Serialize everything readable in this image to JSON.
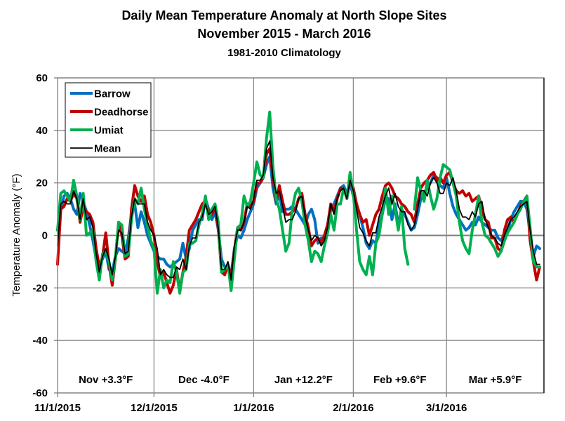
{
  "chart_data": {
    "type": "line",
    "title": "Daily Mean Temperature Anomaly at North Slope Sites",
    "subtitle": "November 2015 - March 2016",
    "subtitle2": "1981-2010 Climatology",
    "xlabel": "",
    "ylabel": "Temperature Anomaly (°F)",
    "ylim": [
      -60,
      60
    ],
    "yticks": [
      60,
      40,
      20,
      0,
      -20,
      -40,
      -60
    ],
    "x_start_date": "11/1/2015",
    "x_end_date": "3/31/2016",
    "x_step": "daily",
    "xticks": [
      "11/1/2015",
      "12/1/2015",
      "1/1/2016",
      "2/1/2016",
      "3/1/2016"
    ],
    "grid": true,
    "legend_placement": "top-left",
    "monthly_annotations": [
      "Nov  +3.3°F",
      "Dec -4.0°F",
      "Jan +12.2°F",
      "Feb +9.6°F",
      "Mar +5.9°F"
    ],
    "series": [
      {
        "name": "Barrow",
        "color": "#0070C0",
        "values": [
          2,
          10,
          15,
          16,
          14,
          10,
          8,
          16,
          13,
          9,
          4,
          -2,
          -9,
          -11,
          -9,
          -6,
          -13,
          -14,
          -8,
          -5,
          -6,
          -7,
          -1,
          8,
          12,
          3,
          9,
          5,
          0,
          -3,
          -6,
          -8,
          -9,
          -9,
          -11,
          -12,
          -11,
          -10,
          -9,
          -3,
          -9,
          -5,
          2,
          4,
          6,
          6,
          14,
          10,
          6,
          9,
          2,
          -9,
          -12,
          -12,
          -15,
          -5,
          0,
          -1,
          2,
          6,
          9,
          12,
          18,
          20,
          22,
          27,
          30,
          18,
          12,
          16,
          9,
          10,
          10,
          11,
          10,
          8,
          6,
          4,
          8,
          10,
          6,
          -3,
          -1,
          -1,
          2,
          10,
          12,
          15,
          18,
          19,
          16,
          20,
          15,
          12,
          8,
          3,
          -3,
          -5,
          -2,
          -3,
          4,
          8,
          14,
          14,
          6,
          12,
          4,
          10,
          8,
          5,
          2,
          3,
          8,
          14,
          16,
          18,
          20,
          23,
          22,
          19,
          18,
          22,
          16,
          11,
          8,
          6,
          4,
          2,
          3,
          5,
          4,
          7,
          5,
          4,
          3,
          2,
          2,
          -1,
          -2,
          1,
          2,
          6,
          9,
          11,
          13,
          13,
          10,
          1,
          -8,
          -4,
          -5
        ]
      },
      {
        "name": "Deadhorse",
        "color": "#C00000",
        "values": [
          -11,
          10,
          11,
          14,
          13,
          16,
          14,
          5,
          11,
          9,
          8,
          5,
          -5,
          -12,
          -8,
          1,
          -11,
          -19,
          -9,
          5,
          0,
          -9,
          -8,
          10,
          19,
          15,
          13,
          15,
          8,
          5,
          0,
          -10,
          -16,
          -14,
          -18,
          -22,
          -19,
          -13,
          -21,
          -14,
          -8,
          2,
          4,
          6,
          9,
          12,
          13,
          9,
          8,
          11,
          3,
          -14,
          -15,
          -11,
          -16,
          -6,
          3,
          2,
          5,
          12,
          11,
          13,
          20,
          20,
          22,
          31,
          33,
          22,
          13,
          19,
          13,
          8,
          8,
          9,
          10,
          14,
          16,
          8,
          3,
          -4,
          -2,
          -1,
          -3,
          0,
          4,
          12,
          9,
          14,
          18,
          18,
          14,
          21,
          18,
          12,
          8,
          5,
          6,
          0,
          4,
          8,
          10,
          15,
          19,
          20,
          18,
          15,
          14,
          12,
          11,
          9,
          8,
          5,
          12,
          18,
          20,
          21,
          23,
          24,
          21,
          22,
          20,
          23,
          24,
          20,
          17,
          16,
          17,
          15,
          16,
          13,
          14,
          15,
          10,
          6,
          5,
          -1,
          -1,
          -5,
          -6,
          2,
          6,
          7,
          5,
          8,
          11,
          13,
          15,
          -2,
          -10,
          -17,
          -12
        ]
      },
      {
        "name": "Umiat",
        "color": "#00B050",
        "values": [
          2,
          16,
          17,
          15,
          13,
          21,
          15,
          6,
          16,
          0,
          1,
          2,
          -10,
          -17,
          -7,
          -6,
          -10,
          -17,
          -9,
          5,
          4,
          -8,
          -7,
          6,
          14,
          12,
          18,
          10,
          4,
          -2,
          -5,
          -22,
          -13,
          -20,
          -17,
          -18,
          -10,
          -14,
          -22,
          -14,
          -13,
          -3,
          -3,
          -2,
          4,
          8,
          15,
          6,
          10,
          12,
          5,
          -14,
          -13,
          -11,
          -21,
          -9,
          3,
          4,
          15,
          11,
          13,
          20,
          28,
          23,
          22,
          37,
          47,
          26,
          14,
          10,
          2,
          -6,
          -3,
          10,
          16,
          18,
          13,
          4,
          -2,
          -10,
          -6,
          -7,
          -10,
          -4,
          1,
          8,
          2,
          12,
          12,
          18,
          14,
          24,
          16,
          2,
          -10,
          -13,
          -15,
          -8,
          -15,
          -3,
          0,
          8,
          18,
          8,
          15,
          10,
          2,
          11,
          -5,
          -11,
          null,
          10,
          22,
          17,
          13,
          21,
          15,
          10,
          14,
          22,
          27,
          26,
          25,
          20,
          15,
          5,
          -2,
          -5,
          -7,
          2,
          8,
          15,
          5,
          0,
          -1,
          -3,
          -5,
          -8,
          -6,
          -2,
          1,
          3,
          5,
          8,
          10,
          13,
          15,
          3,
          -10,
          -12,
          -12
        ]
      },
      {
        "name": "Mean",
        "color": "#000000",
        "values": [
          -4,
          12,
          13,
          12,
          12,
          17,
          14,
          6,
          14,
          6,
          7,
          3,
          -7,
          -14,
          -8,
          -5,
          -9,
          -15,
          -8,
          2,
          1,
          -7,
          -6,
          7,
          14,
          12,
          12,
          12,
          5,
          2,
          0,
          -5,
          -15,
          -13,
          -15,
          -16,
          -16,
          -12,
          -13,
          -9,
          -13,
          -4,
          -1,
          -1,
          5,
          7,
          12,
          8,
          9,
          11,
          3,
          -13,
          -13,
          -10,
          -17,
          -4,
          2,
          2,
          5,
          11,
          10,
          14,
          21,
          21,
          23,
          33,
          36,
          22,
          16,
          17,
          11,
          5,
          6,
          6,
          9,
          14,
          15,
          7,
          2,
          -2,
          0,
          -1,
          -4,
          -2,
          3,
          12,
          8,
          14,
          17,
          18,
          14,
          21,
          17,
          10,
          3,
          1,
          -2,
          -4,
          1,
          1,
          7,
          11,
          15,
          18,
          12,
          16,
          11,
          9,
          9,
          4,
          2,
          4,
          10,
          17,
          17,
          15,
          20,
          22,
          20,
          16,
          16,
          20,
          19,
          22,
          17,
          10,
          7,
          7,
          6,
          9,
          7,
          12,
          13,
          6,
          3,
          0,
          -1,
          -3,
          -4,
          0,
          3,
          6,
          7,
          9,
          11,
          12,
          13,
          2,
          -6,
          -11,
          -11
        ]
      }
    ]
  }
}
